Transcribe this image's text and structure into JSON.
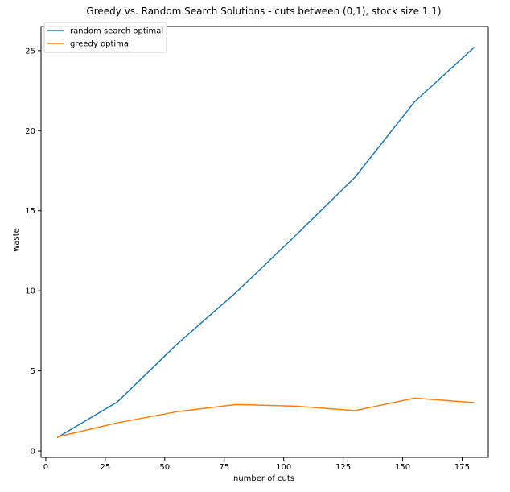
{
  "chart_data": {
    "type": "line",
    "title": "Greedy vs. Random Search Solutions - cuts between (0,1), stock size 1.1)",
    "xlabel": "number of cuts",
    "ylabel": "waste",
    "xlim": [
      -2,
      186
    ],
    "ylim": [
      -0.4,
      26.5
    ],
    "xticks": [
      0,
      25,
      50,
      75,
      100,
      125,
      150,
      175
    ],
    "yticks": [
      0,
      5,
      10,
      15,
      20,
      25
    ],
    "grid": false,
    "legend_position": "upper-left",
    "x": [
      5,
      30,
      55,
      80,
      105,
      130,
      155,
      180
    ],
    "series": [
      {
        "name": "random search optimal",
        "color": "#1f77b4",
        "values": [
          0.85,
          3.05,
          6.65,
          9.9,
          13.45,
          17.1,
          21.8,
          25.2
        ]
      },
      {
        "name": "greedy optimal",
        "color": "#ff7f0e",
        "values": [
          0.88,
          1.75,
          2.45,
          2.9,
          2.8,
          2.52,
          3.3,
          3.02
        ]
      }
    ]
  }
}
